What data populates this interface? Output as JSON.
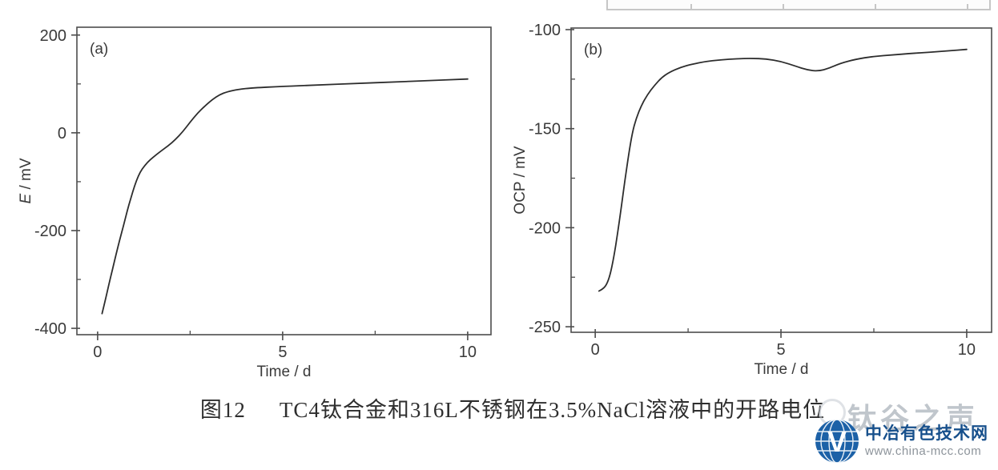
{
  "figure": {
    "caption_prefix": "图12",
    "caption_text": "TC4钛合金和316L不锈钢在3.5%NaCl溶液中的开路电位"
  },
  "watermark": {
    "text": "钛谷之声"
  },
  "logo": {
    "monogram": "V",
    "site_name": "中冶有色技术网",
    "site_url": "www.china-mcc.com",
    "globe_color": "#1c61a7",
    "name_color": "#17508c",
    "url_color": "#8d949b"
  },
  "chart_data": [
    {
      "type": "line",
      "panel_label": "(a)",
      "xlabel": "Time / d",
      "ylabel": "E / mV",
      "ylabel_parts": [
        {
          "text": "E",
          "italic": true
        },
        {
          "text": " / mV",
          "italic": false
        }
      ],
      "xlim": [
        -0.56,
        10.63
      ],
      "ylim": [
        -413,
        216
      ],
      "x_ticks": [
        {
          "v": 0,
          "label": "0"
        },
        {
          "v": 5,
          "label": "5"
        },
        {
          "v": 10,
          "label": "10"
        }
      ],
      "x_minor_ticks": [
        2.5,
        7.5
      ],
      "y_ticks": [
        {
          "v": 200,
          "label": "200"
        },
        {
          "v": 0,
          "label": "0"
        },
        {
          "v": -200,
          "label": "-200"
        },
        {
          "v": -400,
          "label": "-400"
        }
      ],
      "y_minor_ticks": [
        100,
        -100,
        -300
      ],
      "grid": false,
      "legend": "none",
      "axis_color": "#4d4d4d",
      "line_color": "#2d2d2d",
      "label_color": "#3a3a3a",
      "series": [
        {
          "name": "TC4 titanium alloy open-circuit potential",
          "x": [
            0.12,
            0.2,
            0.3,
            0.4,
            0.5,
            0.6,
            0.7,
            0.8,
            0.9,
            1.0,
            1.1,
            1.2,
            1.35,
            1.5,
            1.7,
            1.9,
            2.1,
            2.3,
            2.5,
            2.7,
            2.9,
            3.1,
            3.3,
            3.5,
            3.8,
            4.2,
            5.0,
            6.0,
            7.0,
            8.0,
            9.0,
            10.0
          ],
          "y": [
            -370,
            -345,
            -312,
            -280,
            -248,
            -218,
            -190,
            -160,
            -133,
            -108,
            -88,
            -74,
            -60,
            -50,
            -38,
            -27,
            -14,
            2,
            22,
            40,
            55,
            68,
            78,
            84,
            89,
            92,
            95,
            98,
            101,
            104,
            107,
            110
          ]
        }
      ]
    },
    {
      "type": "line",
      "panel_label": "(b)",
      "xlabel": "Time / d",
      "ylabel": "OCP / mV",
      "ylabel_parts": [
        {
          "text": "OCP / mV",
          "italic": false
        }
      ],
      "xlim": [
        -0.65,
        10.67
      ],
      "ylim": [
        -252.8,
        -99.2
      ],
      "x_ticks": [
        {
          "v": 0,
          "label": "0"
        },
        {
          "v": 5,
          "label": "5"
        },
        {
          "v": 10,
          "label": "10"
        }
      ],
      "x_minor_ticks": [
        2.5,
        7.5
      ],
      "y_ticks": [
        {
          "v": -100,
          "label": "-100"
        },
        {
          "v": -150,
          "label": "-150"
        },
        {
          "v": -200,
          "label": "-200"
        },
        {
          "v": -250,
          "label": "-250"
        }
      ],
      "y_minor_ticks": [
        -125,
        -175,
        -225
      ],
      "grid": false,
      "legend": "none",
      "axis_color": "#4d4d4d",
      "line_color": "#2d2d2d",
      "label_color": "#3a3a3a",
      "series": [
        {
          "name": "316L stainless steel open-circuit potential",
          "x": [
            0.1,
            0.2,
            0.3,
            0.4,
            0.5,
            0.6,
            0.7,
            0.8,
            0.9,
            1.0,
            1.1,
            1.25,
            1.4,
            1.6,
            1.8,
            2.0,
            2.3,
            2.6,
            3.0,
            3.4,
            3.8,
            4.2,
            4.6,
            5.0,
            5.4,
            5.7,
            6.0,
            6.3,
            6.6,
            7.0,
            7.5,
            8.0,
            8.5,
            9.0,
            9.5,
            10.0
          ],
          "y": [
            -232,
            -231,
            -229,
            -224,
            -215,
            -203,
            -190,
            -176,
            -163,
            -152,
            -145,
            -138,
            -133,
            -128,
            -124,
            -121.5,
            -119,
            -117.5,
            -116,
            -115.2,
            -114.7,
            -114.5,
            -114.8,
            -116,
            -118.5,
            -120.3,
            -121,
            -119.5,
            -117,
            -115,
            -113.5,
            -112.8,
            -112,
            -111.5,
            -110.7,
            -110
          ]
        }
      ]
    }
  ]
}
